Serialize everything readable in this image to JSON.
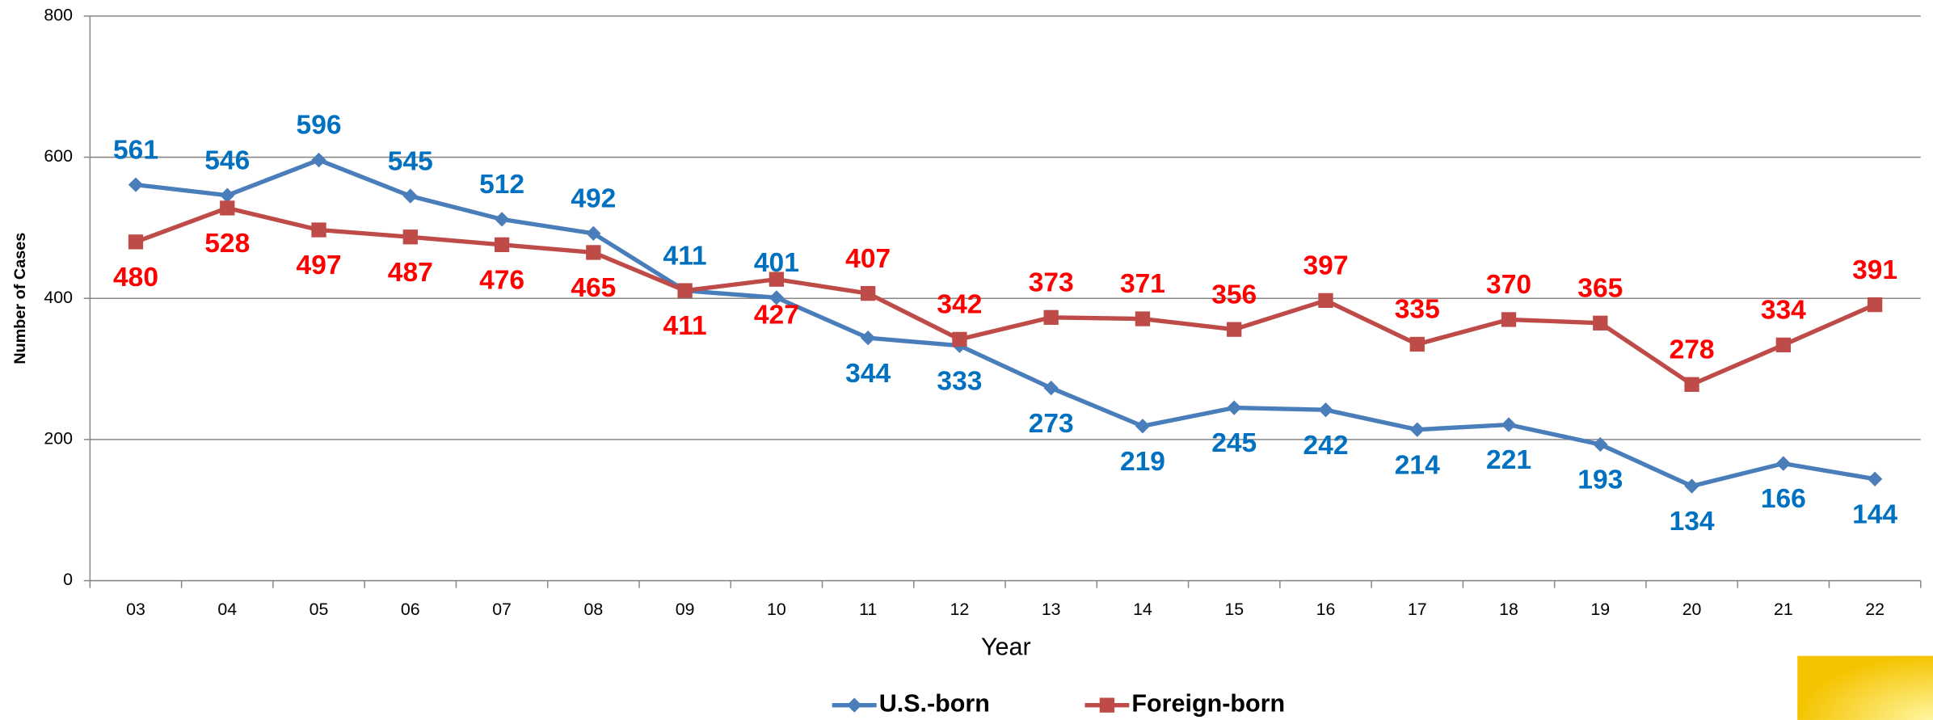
{
  "chart_data": {
    "type": "line",
    "x_label": "Year",
    "y_label": "Number of Cases",
    "categories": [
      "03",
      "04",
      "05",
      "06",
      "07",
      "08",
      "09",
      "10",
      "11",
      "12",
      "13",
      "14",
      "15",
      "16",
      "17",
      "18",
      "19",
      "20",
      "21",
      "22"
    ],
    "series": [
      {
        "name": "U.S.-born",
        "color": "#4a7ebb",
        "label_color": "#0070c0",
        "marker": "diamond",
        "values": [
          561,
          546,
          596,
          545,
          512,
          492,
          411,
          401,
          344,
          333,
          273,
          219,
          245,
          242,
          214,
          221,
          193,
          134,
          166,
          144
        ]
      },
      {
        "name": "Foreign-born",
        "color": "#be4b48",
        "label_color": "#ff0000",
        "marker": "square",
        "values": [
          480,
          528,
          497,
          487,
          476,
          465,
          411,
          427,
          407,
          342,
          373,
          371,
          356,
          397,
          335,
          370,
          365,
          278,
          334,
          391
        ]
      }
    ],
    "ylim": [
      0,
      800
    ],
    "yticks": [
      0,
      200,
      400,
      600,
      800
    ],
    "grid": true,
    "legend": "bottom"
  }
}
